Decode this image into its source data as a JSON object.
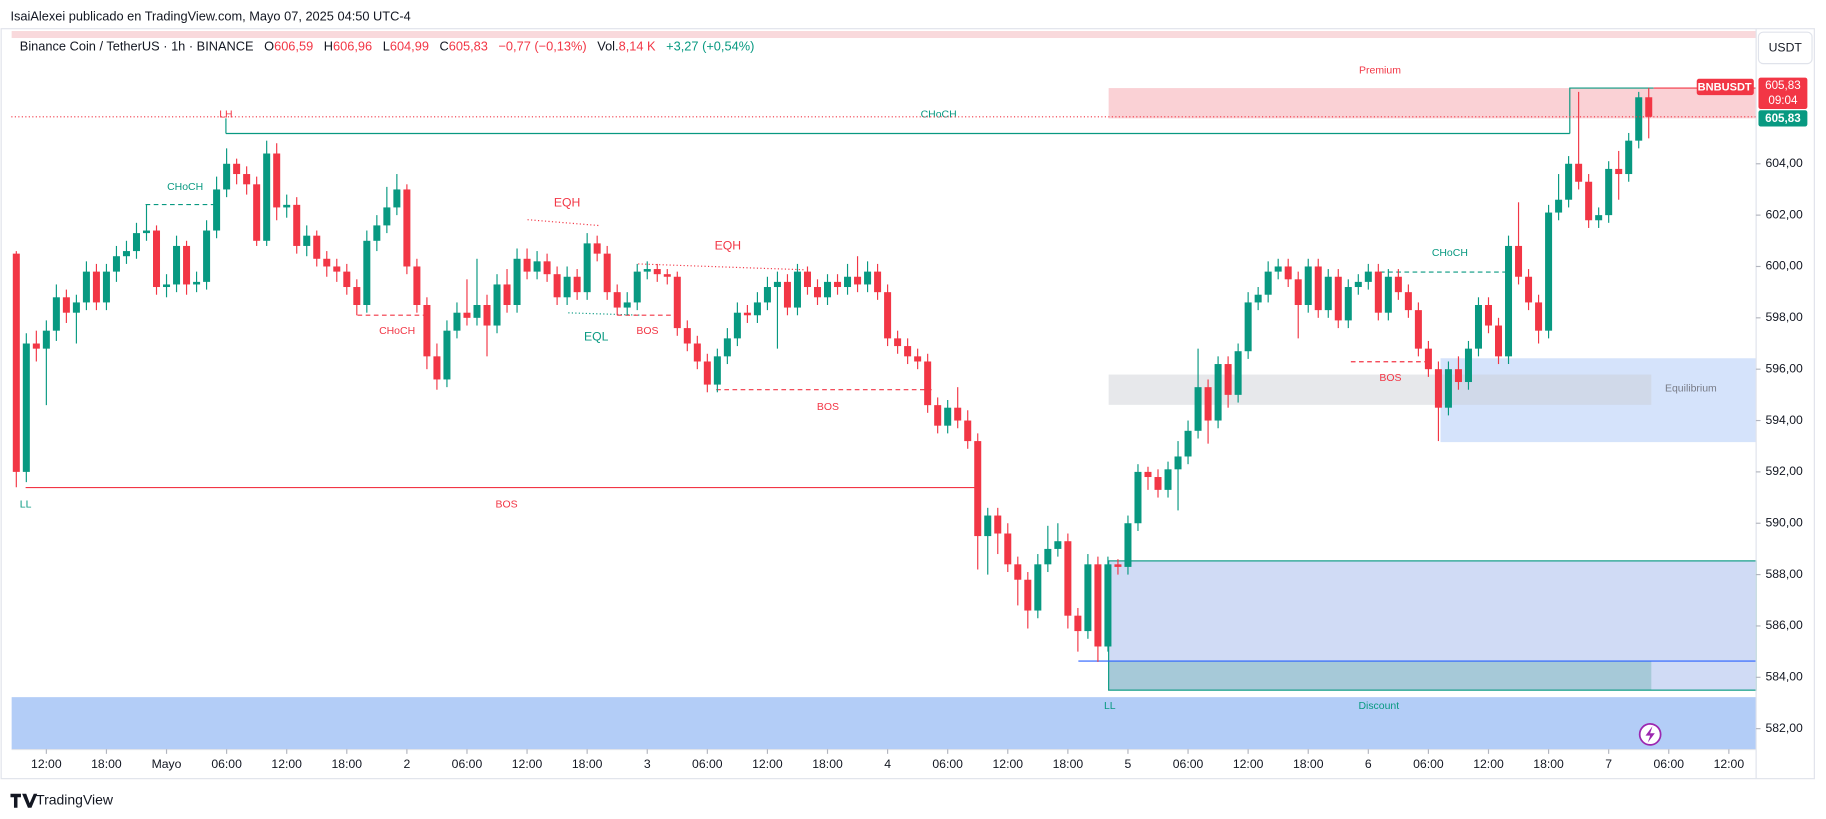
{
  "chart_data": {
    "type": "candlestick",
    "published": "IsaiAlexei publicado en TradingView.com, Mayo 07, 2025 04:50 UTC-4",
    "header": {
      "symbol": "Binance Coin / TetherUS · 1h · BINANCE",
      "o_label": "O",
      "o": "606,59",
      "h_label": "H",
      "h": "606,96",
      "l_label": "L",
      "l": "604,99",
      "c_label": "C",
      "c": "605,83",
      "change": "−0,77 (−0,13%)",
      "vol_label": "Vol.",
      "vol": "8,14 K",
      "vol_change": "+3,27 (+0,54%)"
    },
    "currency": "USDT",
    "brand": "TradingView",
    "price_tags": {
      "symbol": "BNBUSDT",
      "last": "605,83",
      "countdown": "09:04",
      "last2": "605,83"
    },
    "annotations": {
      "lh": "LH",
      "choch_top": "CHoCH",
      "choch1": "CHoCH",
      "choch2": "CHoCH",
      "eqh1": "EQH",
      "eqh2": "EQH",
      "eql": "EQL",
      "bos1": "BOS",
      "bos2": "BOS",
      "ll1": "LL",
      "bos_ll": "BOS",
      "ll2": "LL",
      "choch3": "CHoCH",
      "bos3": "BOS",
      "premium": "Premium",
      "equilibrium": "Equilibrium",
      "discount": "Discount"
    },
    "up_color": "#089981",
    "down_color": "#f23645",
    "ylim": [
      581.2,
      609
    ],
    "yticks": [
      {
        "value": 582,
        "label": "582,00"
      },
      {
        "value": 584,
        "label": "584,00"
      },
      {
        "value": 586,
        "label": "586,00"
      },
      {
        "value": 588,
        "label": "588,00"
      },
      {
        "value": 590,
        "label": "590,00"
      },
      {
        "value": 592,
        "label": "592,00"
      },
      {
        "value": 594,
        "label": "594,00"
      },
      {
        "value": 596,
        "label": "596,00"
      },
      {
        "value": 598,
        "label": "598,00"
      },
      {
        "value": 600,
        "label": "600,00"
      },
      {
        "value": 602,
        "label": "602,00"
      },
      {
        "value": 604,
        "label": "604,00"
      }
    ],
    "xlim": [
      -0.5,
      173.7
    ],
    "xticks": [
      {
        "value": 3,
        "label": "12:00"
      },
      {
        "value": 9,
        "label": "18:00"
      },
      {
        "value": 15,
        "label": "Mayo"
      },
      {
        "value": 21,
        "label": "06:00"
      },
      {
        "value": 27,
        "label": "12:00"
      },
      {
        "value": 33,
        "label": "18:00"
      },
      {
        "value": 39,
        "label": "2"
      },
      {
        "value": 45,
        "label": "06:00"
      },
      {
        "value": 51,
        "label": "12:00"
      },
      {
        "value": 57,
        "label": "18:00"
      },
      {
        "value": 63,
        "label": "3"
      },
      {
        "value": 69,
        "label": "06:00"
      },
      {
        "value": 75,
        "label": "12:00"
      },
      {
        "value": 81,
        "label": "18:00"
      },
      {
        "value": 87,
        "label": "4"
      },
      {
        "value": 93,
        "label": "06:00"
      },
      {
        "value": 99,
        "label": "12:00"
      },
      {
        "value": 105,
        "label": "18:00"
      },
      {
        "value": 111,
        "label": "5"
      },
      {
        "value": 117,
        "label": "06:00"
      },
      {
        "value": 123,
        "label": "12:00"
      },
      {
        "value": 129,
        "label": "18:00"
      },
      {
        "value": 135,
        "label": "6"
      },
      {
        "value": 141,
        "label": "06:00"
      },
      {
        "value": 147,
        "label": "12:00"
      },
      {
        "value": 153,
        "label": "18:00"
      },
      {
        "value": 159,
        "label": "7"
      },
      {
        "value": 165,
        "label": "06:00"
      },
      {
        "value": 171,
        "label": "12:00"
      }
    ],
    "ohlc": [
      [
        600.5,
        600.6,
        591.4,
        592.0
      ],
      [
        592.0,
        597.4,
        591.6,
        597.0
      ],
      [
        597.0,
        597.5,
        596.3,
        596.8
      ],
      [
        596.8,
        597.9,
        594.6,
        597.5
      ],
      [
        597.5,
        599.3,
        597.1,
        598.8
      ],
      [
        598.8,
        599.1,
        597.8,
        598.2
      ],
      [
        598.2,
        598.9,
        597.0,
        598.6
      ],
      [
        598.6,
        600.2,
        598.3,
        599.8
      ],
      [
        599.8,
        600.1,
        598.3,
        598.6
      ],
      [
        598.6,
        600.1,
        598.3,
        599.8
      ],
      [
        599.8,
        600.8,
        599.4,
        600.4
      ],
      [
        600.4,
        601.0,
        600.1,
        600.6
      ],
      [
        600.6,
        601.7,
        600.3,
        601.3
      ],
      [
        601.3,
        602.4,
        601.0,
        601.4
      ],
      [
        601.4,
        601.6,
        598.9,
        599.2
      ],
      [
        599.2,
        599.7,
        598.8,
        599.3
      ],
      [
        599.3,
        601.2,
        599.0,
        600.8
      ],
      [
        600.8,
        601.0,
        598.9,
        599.3
      ],
      [
        599.3,
        599.8,
        599.0,
        599.4
      ],
      [
        599.4,
        601.8,
        599.1,
        601.4
      ],
      [
        601.4,
        603.5,
        601.1,
        603.0
      ],
      [
        603.0,
        604.6,
        602.7,
        604.0
      ],
      [
        604.0,
        604.2,
        603.2,
        603.6
      ],
      [
        603.6,
        603.9,
        602.8,
        603.2
      ],
      [
        603.2,
        603.5,
        600.8,
        601.0
      ],
      [
        601.0,
        604.9,
        600.8,
        604.4
      ],
      [
        604.4,
        604.8,
        601.8,
        602.3
      ],
      [
        602.3,
        602.8,
        601.9,
        602.4
      ],
      [
        602.4,
        602.7,
        600.5,
        600.8
      ],
      [
        600.8,
        601.6,
        600.4,
        601.2
      ],
      [
        601.2,
        601.4,
        600.0,
        600.3
      ],
      [
        600.3,
        600.6,
        599.6,
        600.0
      ],
      [
        600.0,
        600.3,
        599.4,
        599.8
      ],
      [
        599.8,
        600.1,
        598.9,
        599.2
      ],
      [
        599.2,
        599.5,
        598.1,
        598.5
      ],
      [
        598.5,
        601.4,
        598.2,
        601.0
      ],
      [
        601.0,
        602.0,
        600.6,
        601.6
      ],
      [
        601.6,
        603.1,
        601.3,
        602.3
      ],
      [
        602.3,
        603.6,
        602.0,
        603.0
      ],
      [
        603.0,
        603.2,
        599.7,
        600.0
      ],
      [
        600.0,
        600.3,
        598.2,
        598.5
      ],
      [
        598.5,
        598.8,
        596.0,
        596.5
      ],
      [
        596.5,
        597.0,
        595.2,
        595.6
      ],
      [
        595.6,
        597.9,
        595.3,
        597.5
      ],
      [
        597.5,
        598.6,
        597.2,
        598.2
      ],
      [
        598.2,
        599.5,
        597.7,
        598.0
      ],
      [
        598.0,
        600.3,
        597.7,
        598.5
      ],
      [
        598.5,
        598.9,
        596.5,
        597.7
      ],
      [
        597.7,
        599.7,
        597.4,
        599.3
      ],
      [
        599.3,
        599.9,
        598.2,
        598.5
      ],
      [
        598.5,
        600.7,
        598.2,
        600.3
      ],
      [
        600.3,
        600.7,
        599.5,
        599.8
      ],
      [
        599.8,
        600.6,
        599.5,
        600.2
      ],
      [
        600.2,
        600.5,
        599.4,
        599.7
      ],
      [
        599.7,
        600.0,
        598.5,
        598.8
      ],
      [
        598.8,
        600.0,
        598.5,
        599.6
      ],
      [
        599.6,
        599.9,
        598.7,
        599.0
      ],
      [
        599.0,
        601.3,
        598.7,
        600.9
      ],
      [
        600.9,
        601.2,
        600.2,
        600.5
      ],
      [
        600.5,
        600.8,
        598.7,
        599.0
      ],
      [
        599.0,
        599.3,
        598.1,
        598.4
      ],
      [
        598.4,
        599.0,
        598.1,
        598.6
      ],
      [
        598.6,
        600.1,
        598.3,
        599.8
      ],
      [
        599.8,
        600.2,
        599.5,
        599.9
      ],
      [
        599.9,
        600.1,
        599.4,
        599.7
      ],
      [
        599.7,
        599.9,
        599.3,
        599.6
      ],
      [
        599.6,
        599.8,
        597.3,
        597.6
      ],
      [
        597.6,
        597.9,
        596.7,
        597.0
      ],
      [
        597.0,
        597.3,
        596.0,
        596.3
      ],
      [
        596.3,
        596.6,
        595.1,
        595.4
      ],
      [
        595.4,
        596.8,
        595.1,
        596.5
      ],
      [
        596.5,
        597.6,
        596.2,
        597.2
      ],
      [
        597.2,
        598.6,
        596.9,
        598.2
      ],
      [
        598.2,
        598.5,
        597.8,
        598.1
      ],
      [
        598.1,
        599.0,
        597.8,
        598.6
      ],
      [
        598.6,
        599.6,
        598.3,
        599.2
      ],
      [
        599.2,
        599.8,
        596.8,
        599.4
      ],
      [
        599.4,
        599.7,
        598.1,
        598.4
      ],
      [
        598.4,
        600.1,
        598.1,
        599.8
      ],
      [
        599.8,
        600.0,
        598.9,
        599.2
      ],
      [
        599.2,
        599.5,
        598.5,
        598.8
      ],
      [
        598.8,
        599.7,
        598.5,
        599.4
      ],
      [
        599.4,
        599.7,
        598.9,
        599.2
      ],
      [
        599.2,
        600.1,
        598.9,
        599.6
      ],
      [
        599.6,
        600.4,
        599.0,
        599.3
      ],
      [
        599.3,
        600.2,
        599.0,
        599.8
      ],
      [
        599.8,
        600.1,
        598.7,
        599.0
      ],
      [
        599.0,
        599.3,
        596.9,
        597.2
      ],
      [
        597.2,
        597.5,
        596.6,
        596.9
      ],
      [
        596.9,
        597.2,
        596.2,
        596.5
      ],
      [
        596.5,
        596.8,
        596.0,
        596.3
      ],
      [
        596.3,
        596.6,
        594.3,
        594.6
      ],
      [
        594.6,
        594.9,
        593.5,
        593.8
      ],
      [
        593.8,
        594.8,
        593.5,
        594.5
      ],
      [
        594.5,
        595.3,
        593.7,
        594.0
      ],
      [
        594.0,
        594.4,
        592.9,
        593.2
      ],
      [
        593.2,
        593.5,
        588.2,
        589.5
      ],
      [
        589.5,
        590.6,
        588.0,
        590.3
      ],
      [
        590.3,
        590.6,
        588.8,
        589.6
      ],
      [
        589.6,
        590.0,
        588.1,
        588.4
      ],
      [
        588.4,
        588.7,
        586.8,
        587.8
      ],
      [
        587.8,
        588.1,
        585.9,
        586.6
      ],
      [
        586.6,
        588.8,
        586.3,
        588.4
      ],
      [
        588.4,
        589.9,
        588.1,
        589.0
      ],
      [
        589.0,
        590.0,
        588.7,
        589.3
      ],
      [
        589.3,
        589.6,
        585.9,
        586.4
      ],
      [
        586.4,
        586.7,
        585.0,
        585.8
      ],
      [
        585.8,
        588.8,
        585.5,
        588.4
      ],
      [
        588.4,
        588.7,
        584.6,
        585.2
      ],
      [
        585.2,
        588.7,
        585.0,
        588.4
      ],
      [
        588.4,
        588.6,
        588.0,
        588.3
      ],
      [
        588.3,
        590.3,
        588.0,
        590.0
      ],
      [
        590.0,
        592.3,
        589.7,
        592.0
      ],
      [
        592.0,
        592.2,
        591.3,
        591.8
      ],
      [
        591.8,
        592.1,
        591.0,
        591.3
      ],
      [
        591.3,
        592.4,
        591.0,
        592.1
      ],
      [
        592.1,
        593.2,
        590.5,
        592.6
      ],
      [
        592.6,
        594.0,
        592.3,
        593.6
      ],
      [
        593.6,
        596.8,
        593.3,
        595.3
      ],
      [
        595.3,
        595.6,
        593.1,
        594.0
      ],
      [
        594.0,
        596.5,
        593.7,
        596.2
      ],
      [
        596.2,
        596.5,
        594.5,
        595.0
      ],
      [
        595.0,
        597.0,
        594.7,
        596.7
      ],
      [
        596.7,
        599.0,
        596.4,
        598.6
      ],
      [
        598.6,
        599.2,
        598.3,
        598.9
      ],
      [
        598.9,
        600.2,
        598.6,
        599.8
      ],
      [
        599.8,
        600.3,
        599.5,
        600.0
      ],
      [
        600.0,
        600.3,
        599.2,
        599.5
      ],
      [
        599.5,
        599.8,
        597.2,
        598.5
      ],
      [
        598.5,
        600.3,
        598.2,
        600.0
      ],
      [
        600.0,
        600.3,
        598.0,
        598.3
      ],
      [
        598.3,
        599.9,
        598.0,
        599.6
      ],
      [
        599.6,
        599.9,
        597.6,
        597.9
      ],
      [
        597.9,
        599.5,
        597.6,
        599.2
      ],
      [
        599.2,
        599.7,
        598.9,
        599.4
      ],
      [
        599.4,
        600.1,
        599.1,
        599.8
      ],
      [
        599.8,
        600.1,
        597.9,
        598.2
      ],
      [
        598.2,
        599.9,
        597.9,
        599.6
      ],
      [
        599.6,
        599.9,
        598.7,
        599.0
      ],
      [
        599.0,
        599.3,
        598.0,
        598.3
      ],
      [
        598.3,
        598.6,
        596.5,
        596.8
      ],
      [
        596.8,
        597.1,
        595.7,
        596.0
      ],
      [
        596.0,
        596.3,
        593.2,
        594.5
      ],
      [
        594.5,
        596.3,
        594.2,
        596.0
      ],
      [
        596.0,
        596.5,
        595.2,
        595.5
      ],
      [
        595.5,
        597.1,
        595.2,
        596.8
      ],
      [
        596.8,
        598.8,
        596.5,
        598.5
      ],
      [
        598.5,
        598.8,
        597.4,
        597.7
      ],
      [
        597.7,
        598.0,
        596.2,
        596.5
      ],
      [
        596.5,
        601.2,
        596.2,
        600.8
      ],
      [
        600.8,
        602.5,
        599.3,
        599.6
      ],
      [
        599.6,
        599.9,
        598.3,
        598.6
      ],
      [
        598.6,
        598.9,
        597.0,
        597.5
      ],
      [
        597.5,
        602.4,
        597.2,
        602.1
      ],
      [
        602.1,
        603.6,
        601.8,
        602.6
      ],
      [
        602.6,
        604.3,
        602.3,
        604.0
      ],
      [
        604.0,
        606.8,
        603.0,
        603.3
      ],
      [
        603.3,
        603.6,
        601.5,
        601.8
      ],
      [
        601.8,
        602.3,
        601.5,
        602.0
      ],
      [
        602.0,
        604.1,
        601.7,
        603.8
      ],
      [
        603.8,
        604.5,
        602.6,
        603.6
      ],
      [
        603.6,
        605.2,
        603.3,
        604.9
      ],
      [
        604.9,
        606.8,
        604.6,
        606.59
      ],
      [
        606.59,
        606.96,
        604.99,
        605.83
      ]
    ]
  }
}
